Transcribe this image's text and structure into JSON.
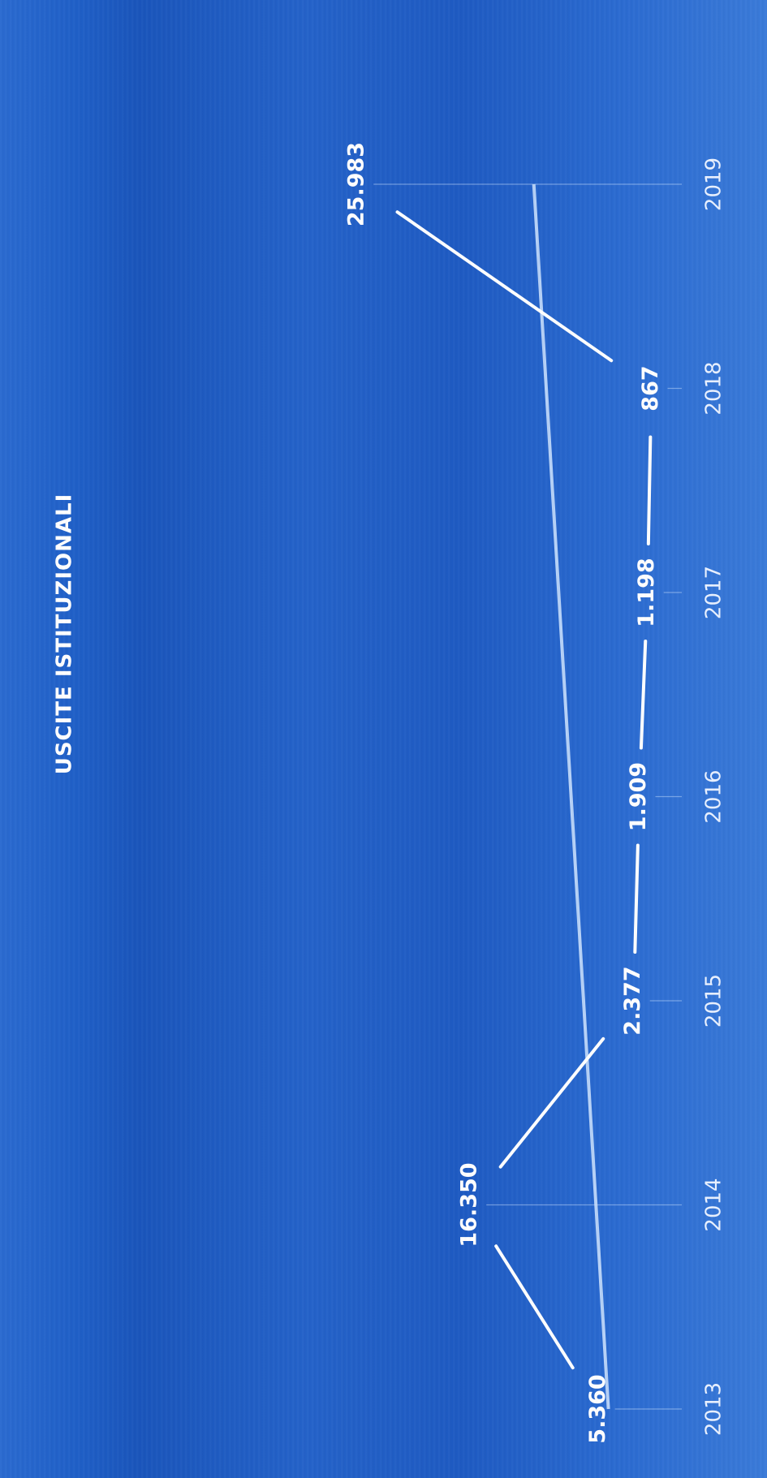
{
  "chart_data": {
    "type": "line",
    "title": "USCITE ISTITUZIONALI",
    "categories": [
      "2013",
      "2014",
      "2015",
      "2016",
      "2017",
      "2018",
      "2019"
    ],
    "series": [
      {
        "values": [
          5360,
          16350,
          2377,
          1909,
          1198,
          867,
          25983
        ],
        "labels": [
          "5.360",
          "16.350",
          "2.377",
          "1.909",
          "1.198",
          "867",
          "25.983"
        ]
      }
    ],
    "trendline": true,
    "grid": false,
    "orientation": "rotated-90-ccw",
    "colors": {
      "background": "#1f5fc7",
      "line": "#ffffff",
      "trend": "#cfe4ff"
    }
  }
}
